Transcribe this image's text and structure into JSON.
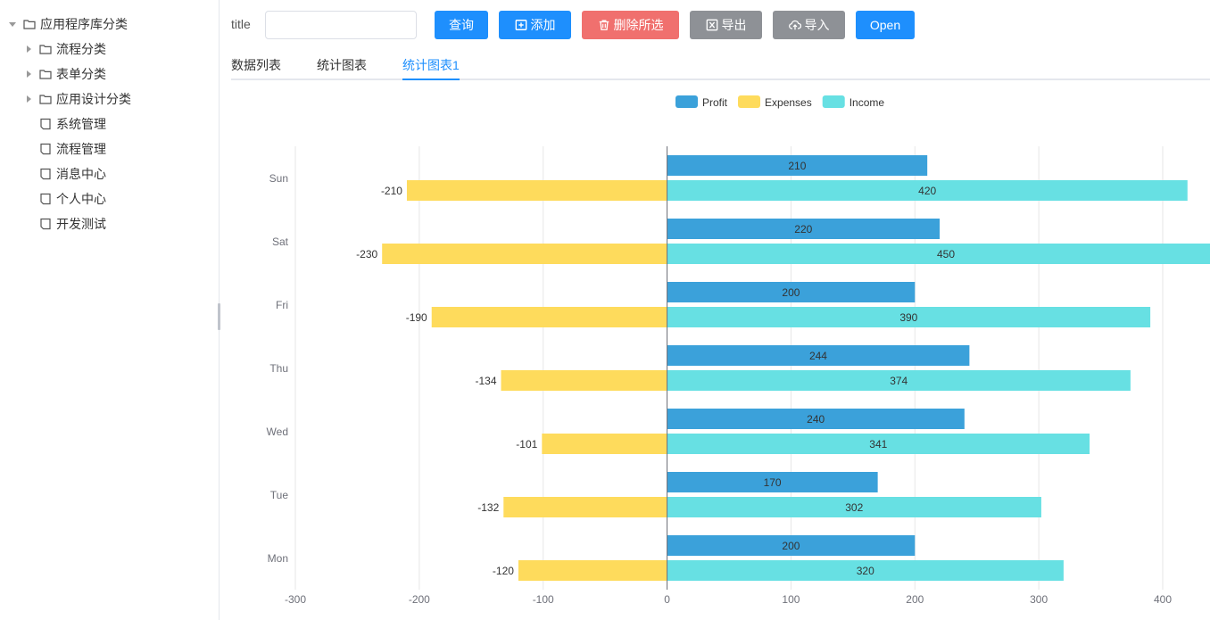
{
  "sidebar": {
    "items": [
      {
        "label": "应用程序库分类",
        "type": "folder",
        "expandable": true,
        "expanded": true,
        "level": 0
      },
      {
        "label": "流程分类",
        "type": "folder",
        "expandable": true,
        "expanded": false,
        "level": 1
      },
      {
        "label": "表单分类",
        "type": "folder",
        "expandable": true,
        "expanded": false,
        "level": 1
      },
      {
        "label": "应用设计分类",
        "type": "folder",
        "expandable": true,
        "expanded": false,
        "level": 1
      },
      {
        "label": "系统管理",
        "type": "file",
        "expandable": false,
        "level": 1
      },
      {
        "label": "流程管理",
        "type": "file",
        "expandable": false,
        "level": 1
      },
      {
        "label": "消息中心",
        "type": "file",
        "expandable": false,
        "level": 1
      },
      {
        "label": "个人中心",
        "type": "file",
        "expandable": false,
        "level": 1
      },
      {
        "label": "开发测试",
        "type": "file",
        "expandable": false,
        "level": 1
      }
    ]
  },
  "toolbar": {
    "search_label": "title",
    "search_value": "",
    "query_label": "查询",
    "add_label": "添加",
    "delete_label": "删除所选",
    "export_label": "导出",
    "import_label": "导入",
    "open_label": "Open"
  },
  "tabs": [
    {
      "label": "数据列表",
      "active": false
    },
    {
      "label": "统计图表",
      "active": false
    },
    {
      "label": "统计图表1",
      "active": true
    }
  ],
  "colors": {
    "accent": "#1e8ffd",
    "danger": "#f0706e",
    "neutral": "#8e9196",
    "profit": "#3ba1da",
    "expenses": "#fedb5c",
    "income": "#67e0e3"
  },
  "chart_data": {
    "type": "bar",
    "orientation": "horizontal",
    "categories": [
      "Mon",
      "Tue",
      "Wed",
      "Thu",
      "Fri",
      "Sat",
      "Sun"
    ],
    "series": [
      {
        "name": "Profit",
        "values": [
          200,
          170,
          240,
          244,
          200,
          220,
          210
        ],
        "color": "#3ba1da"
      },
      {
        "name": "Expenses",
        "values": [
          -120,
          -132,
          -101,
          -134,
          -190,
          -230,
          -210
        ],
        "color": "#fedb5c"
      },
      {
        "name": "Income",
        "values": [
          320,
          302,
          341,
          374,
          390,
          450,
          420
        ],
        "color": "#67e0e3"
      }
    ],
    "xlim": [
      -300,
      400
    ],
    "xticks": [
      -300,
      -200,
      -100,
      0,
      100,
      200,
      300,
      400
    ],
    "legend_position": "top-center",
    "grid": "vertical",
    "data_labels": true
  }
}
